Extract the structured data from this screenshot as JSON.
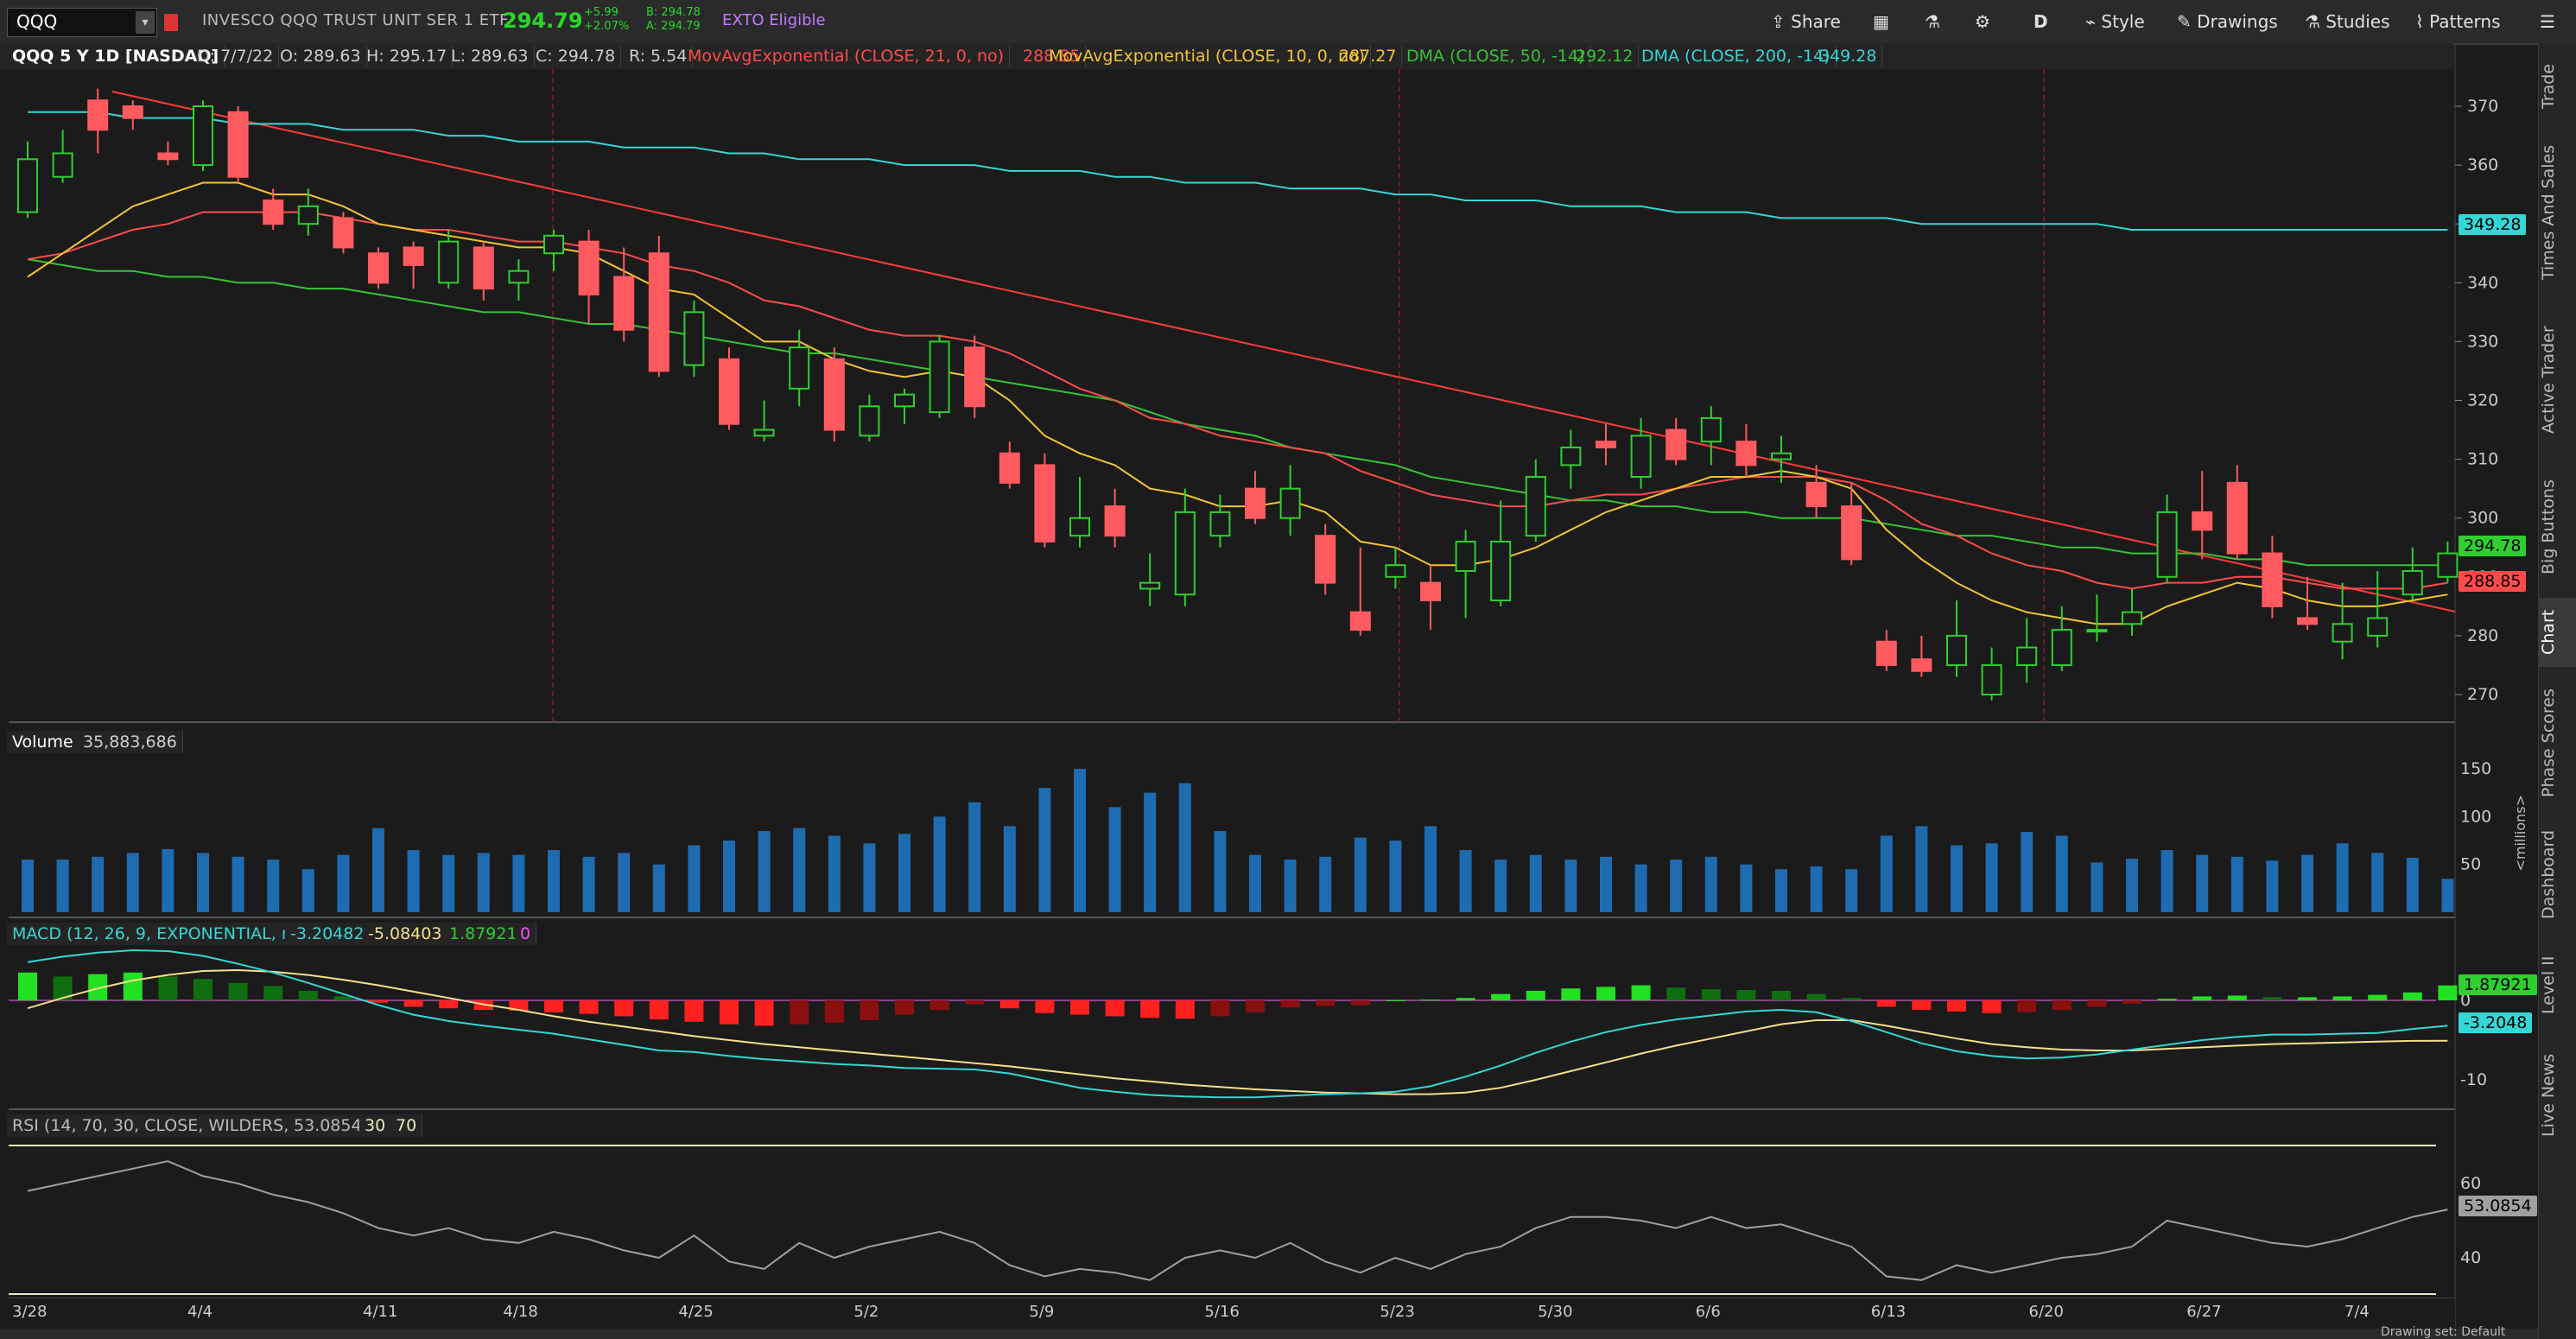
{
  "topbar": {
    "symbol": "QQQ",
    "instrument_name": "INVESCO QQQ TRUST UNIT SER 1 ETF",
    "last_price": "294.79",
    "change_abs": "+5.99",
    "change_pct": "+2.07%",
    "bid": "B: 294.78",
    "ask": "A: 294.79",
    "exto": "EXTO Eligible",
    "buttons": {
      "share": "Share",
      "period": "D",
      "style": "Style",
      "drawings": "Drawings",
      "studies": "Studies",
      "patterns": "Patterns"
    }
  },
  "chart_info": {
    "title": "QQQ 5 Y 1D [NASDAQ]",
    "date": "D: 7/7/22",
    "open": "O: 289.63",
    "high": "H: 295.17",
    "low": "L: 289.63",
    "close": "C: 294.78",
    "range": "R: 5.54",
    "ema21_label": "MovAvgExponential (CLOSE, 21, 0, no)",
    "ema21_value": "288.85",
    "ema10_label": "MovAvgExponential (CLOSE, 10, 0, no)",
    "ema10_value": "287.27",
    "dma50_label": "DMA (CLOSE, 50, -14)",
    "dma50_value": "292.12",
    "dma200_label": "DMA (CLOSE, 200, -14)",
    "dma200_value": "349.28"
  },
  "colors": {
    "up": "#2fcf2f",
    "down": "#ff5a5f",
    "ema21": "#ff4b4b",
    "ema10": "#f2c431",
    "dma50": "#35c435",
    "dma200": "#35d6d6",
    "macd": "#35d6d6",
    "signal": "#f5df8c",
    "volume": "#1f6bb0",
    "rsi": "#a0a0a0"
  },
  "price_axis": {
    "ticks": [
      "370",
      "360",
      "350",
      "340",
      "330",
      "320",
      "310",
      "300",
      "290",
      "280",
      "270"
    ],
    "tags": {
      "dma200": "349.28",
      "last": "294.78",
      "ema21": "288.85"
    }
  },
  "volume_pane": {
    "title": "Volume",
    "value": "35,883,686",
    "ticks": [
      "150",
      "100",
      "50"
    ],
    "unit": "<millions>"
  },
  "macd_pane": {
    "title": "MACD (12, 26, 9, EXPONENTIAL, no)",
    "macd_value": "-3.20482",
    "signal_value": "-5.08403",
    "diff_value": "1.87921",
    "zero_value": "0",
    "ticks": [
      "0",
      "-10"
    ],
    "tags": {
      "diff": "1.87921",
      "macd": "-3.2048"
    }
  },
  "rsi_pane": {
    "title": "RSI (14, 70, 30, CLOSE, WILDERS, no)",
    "value": "53.0854",
    "oversold": "30",
    "overbought": "70",
    "ticks": [
      "60",
      "40"
    ],
    "tag": "53.0854"
  },
  "x_axis": {
    "labels": [
      "3/28",
      "4/4",
      "4/11",
      "4/18",
      "4/25",
      "5/2",
      "5/9",
      "5/16",
      "5/23",
      "5/30",
      "6/6",
      "6/13",
      "6/20",
      "6/27",
      "7/4"
    ]
  },
  "side_tabs": [
    "Trade",
    "Times And Sales",
    "Active Trader",
    "Big Buttons",
    "Chart",
    "Phase Scores",
    "Dashboard",
    "Level II",
    "Live News"
  ],
  "status": {
    "drawing_set": "Drawing set: Default"
  },
  "chart_data": {
    "type": "candlestick",
    "dates": [
      "3/28",
      "3/29",
      "3/30",
      "3/31",
      "4/1",
      "4/4",
      "4/5",
      "4/6",
      "4/7",
      "4/8",
      "4/11",
      "4/12",
      "4/13",
      "4/14",
      "4/18",
      "4/19",
      "4/20",
      "4/21",
      "4/22",
      "4/25",
      "4/26",
      "4/27",
      "4/28",
      "4/29",
      "5/2",
      "5/3",
      "5/4",
      "5/5",
      "5/6",
      "5/9",
      "5/10",
      "5/11",
      "5/12",
      "5/13",
      "5/16",
      "5/17",
      "5/18",
      "5/19",
      "5/20",
      "5/23",
      "5/24",
      "5/25",
      "5/26",
      "5/27",
      "5/31",
      "6/1",
      "6/2",
      "6/3",
      "6/6",
      "6/7",
      "6/8",
      "6/9",
      "6/10",
      "6/13",
      "6/14",
      "6/15",
      "6/16",
      "6/17",
      "6/21",
      "6/22",
      "6/23",
      "6/24",
      "6/27",
      "6/28",
      "6/29",
      "6/30",
      "7/1",
      "7/5",
      "7/6",
      "7/7"
    ],
    "open": [
      352,
      358,
      371,
      370,
      362,
      360,
      369,
      354,
      350,
      351,
      345,
      346,
      340,
      346,
      340,
      345,
      347,
      341,
      345,
      326,
      327,
      314,
      322,
      327,
      314,
      319,
      318,
      329,
      311,
      309,
      297,
      302,
      288,
      287,
      297,
      305,
      300,
      297,
      284,
      290,
      289,
      291,
      286,
      297,
      309,
      313,
      307,
      315,
      313,
      313,
      310,
      306,
      302,
      279,
      276,
      275,
      270,
      275,
      275,
      281,
      282,
      290,
      301,
      306,
      294,
      283,
      279,
      280,
      287,
      290
    ],
    "close": [
      361,
      362,
      366,
      368,
      361,
      370,
      358,
      350,
      353,
      346,
      340,
      343,
      347,
      339,
      342,
      348,
      338,
      332,
      325,
      335,
      316,
      315,
      329,
      315,
      319,
      321,
      330,
      319,
      306,
      296,
      300,
      297,
      289,
      301,
      301,
      300,
      305,
      289,
      281,
      292,
      286,
      296,
      296,
      307,
      312,
      312,
      314,
      310,
      317,
      309,
      311,
      302,
      293,
      275,
      274,
      280,
      275,
      278,
      281,
      281,
      284,
      301,
      298,
      294,
      285,
      282,
      282,
      283,
      291,
      294
    ],
    "high": [
      364,
      366,
      373,
      371,
      364,
      371,
      370,
      356,
      356,
      352,
      346,
      347,
      349,
      347,
      344,
      349,
      349,
      346,
      348,
      337,
      329,
      320,
      332,
      329,
      321,
      322,
      331,
      331,
      313,
      311,
      307,
      305,
      294,
      305,
      304,
      308,
      309,
      299,
      295,
      295,
      292,
      298,
      303,
      310,
      315,
      316,
      317,
      317,
      319,
      316,
      314,
      309,
      306,
      281,
      280,
      286,
      278,
      283,
      285,
      287,
      288,
      304,
      308,
      309,
      297,
      290,
      289,
      291,
      295,
      296
    ],
    "low": [
      351,
      357,
      362,
      366,
      360,
      359,
      357,
      349,
      348,
      345,
      339,
      339,
      339,
      337,
      337,
      342,
      333,
      330,
      324,
      324,
      315,
      313,
      319,
      313,
      313,
      316,
      317,
      317,
      305,
      295,
      295,
      295,
      285,
      285,
      295,
      299,
      297,
      287,
      280,
      288,
      281,
      283,
      285,
      296,
      305,
      309,
      305,
      309,
      309,
      307,
      306,
      300,
      292,
      274,
      273,
      273,
      269,
      272,
      274,
      279,
      280,
      289,
      293,
      293,
      283,
      281,
      276,
      278,
      286,
      289
    ],
    "ema10": [
      341,
      345,
      349,
      353,
      355,
      357,
      357,
      355,
      355,
      353,
      350,
      349,
      348,
      347,
      346,
      346,
      345,
      342,
      339,
      338,
      334,
      330,
      330,
      327,
      325,
      324,
      325,
      324,
      320,
      314,
      311,
      309,
      305,
      304,
      302,
      302,
      303,
      301,
      296,
      295,
      292,
      292,
      293,
      295,
      298,
      301,
      303,
      305,
      307,
      307,
      308,
      307,
      305,
      298,
      293,
      289,
      286,
      284,
      283,
      282,
      282,
      285,
      287,
      289,
      288,
      286,
      285,
      285,
      286,
      287
    ],
    "ema21": [
      344,
      345,
      347,
      349,
      350,
      352,
      352,
      352,
      352,
      351,
      350,
      349,
      349,
      348,
      347,
      347,
      346,
      345,
      343,
      342,
      340,
      337,
      336,
      334,
      332,
      331,
      331,
      330,
      328,
      325,
      322,
      320,
      317,
      316,
      314,
      313,
      312,
      311,
      308,
      306,
      304,
      303,
      302,
      302,
      303,
      304,
      304,
      305,
      306,
      307,
      307,
      307,
      306,
      303,
      299,
      297,
      294,
      292,
      291,
      289,
      288,
      289,
      289,
      290,
      290,
      289,
      288,
      288,
      288,
      289
    ],
    "dma50": [
      344,
      343,
      342,
      342,
      341,
      341,
      340,
      340,
      339,
      339,
      338,
      337,
      336,
      335,
      335,
      334,
      333,
      333,
      332,
      331,
      330,
      329,
      328,
      328,
      327,
      326,
      325,
      324,
      323,
      322,
      321,
      320,
      318,
      316,
      315,
      314,
      312,
      311,
      310,
      309,
      307,
      306,
      305,
      304,
      303,
      303,
      302,
      302,
      301,
      301,
      300,
      300,
      300,
      299,
      298,
      297,
      297,
      296,
      295,
      295,
      294,
      294,
      294,
      293,
      293,
      292,
      292,
      292,
      292,
      292
    ],
    "dma200": [
      369,
      369,
      369,
      368,
      368,
      368,
      367,
      367,
      367,
      366,
      366,
      366,
      365,
      365,
      364,
      364,
      364,
      363,
      363,
      363,
      362,
      362,
      361,
      361,
      361,
      360,
      360,
      360,
      359,
      359,
      359,
      358,
      358,
      357,
      357,
      357,
      356,
      356,
      356,
      355,
      355,
      354,
      354,
      354,
      353,
      353,
      353,
      352,
      352,
      352,
      351,
      351,
      351,
      351,
      350,
      350,
      350,
      350,
      350,
      350,
      349,
      349,
      349,
      349,
      349,
      349,
      349,
      349,
      349,
      349
    ],
    "volume_millions": [
      55,
      55,
      58,
      62,
      66,
      62,
      58,
      55,
      45,
      60,
      88,
      65,
      60,
      62,
      60,
      65,
      58,
      62,
      50,
      70,
      75,
      85,
      88,
      80,
      72,
      82,
      100,
      115,
      90,
      130,
      150,
      110,
      125,
      135,
      85,
      60,
      55,
      58,
      78,
      75,
      90,
      65,
      55,
      60,
      55,
      58,
      50,
      55,
      58,
      50,
      45,
      48,
      45,
      80,
      90,
      70,
      72,
      84,
      80,
      52,
      56,
      65,
      60,
      58,
      54,
      60,
      72,
      62,
      57,
      35
    ],
    "macd_hist": [
      3.5,
      3.0,
      3.3,
      3.5,
      3.0,
      2.7,
      2.2,
      1.8,
      1.2,
      0.5,
      -0.3,
      -0.8,
      -1.0,
      -1.2,
      -1.3,
      -1.5,
      -1.7,
      -2.0,
      -2.4,
      -2.7,
      -3.0,
      -3.2,
      -3.0,
      -2.8,
      -2.5,
      -1.8,
      -1.2,
      -0.5,
      -1.0,
      -1.6,
      -1.8,
      -2.0,
      -2.2,
      -2.3,
      -2.0,
      -1.5,
      -0.9,
      -0.7,
      -0.6,
      0.0,
      0.1,
      0.3,
      0.8,
      1.2,
      1.5,
      1.7,
      1.9,
      1.6,
      1.4,
      1.3,
      1.2,
      0.8,
      0.3,
      -0.8,
      -1.2,
      -1.4,
      -1.6,
      -1.5,
      -1.2,
      -0.8,
      -0.4,
      0.2,
      0.5,
      0.6,
      0.4,
      0.4,
      0.5,
      0.7,
      1.0,
      1.88
    ],
    "macd_line": [
      4.8,
      5.5,
      6.0,
      6.3,
      6.2,
      5.6,
      4.6,
      3.5,
      2.2,
      0.8,
      -0.6,
      -1.8,
      -2.6,
      -3.2,
      -3.7,
      -4.2,
      -4.9,
      -5.6,
      -6.3,
      -6.5,
      -7.0,
      -7.4,
      -7.7,
      -8.0,
      -8.2,
      -8.5,
      -8.6,
      -8.7,
      -9.2,
      -10.1,
      -11.0,
      -11.5,
      -11.9,
      -12.1,
      -12.2,
      -12.2,
      -12.0,
      -11.8,
      -11.7,
      -11.5,
      -10.8,
      -9.6,
      -8.2,
      -6.6,
      -5.2,
      -4.0,
      -3.1,
      -2.4,
      -1.9,
      -1.4,
      -1.2,
      -1.5,
      -2.6,
      -4.0,
      -5.4,
      -6.4,
      -7.0,
      -7.3,
      -7.2,
      -6.8,
      -6.2,
      -5.6,
      -5.0,
      -4.6,
      -4.3,
      -4.3,
      -4.2,
      -4.1,
      -3.6,
      -3.2
    ],
    "macd_signal": [
      -1.0,
      0.3,
      1.5,
      2.5,
      3.2,
      3.7,
      3.8,
      3.6,
      3.2,
      2.6,
      1.9,
      1.1,
      0.3,
      -0.5,
      -1.2,
      -2.0,
      -2.7,
      -3.3,
      -3.9,
      -4.5,
      -5.0,
      -5.5,
      -5.9,
      -6.3,
      -6.7,
      -7.1,
      -7.5,
      -7.9,
      -8.3,
      -8.8,
      -9.3,
      -9.8,
      -10.2,
      -10.6,
      -10.9,
      -11.2,
      -11.4,
      -11.6,
      -11.7,
      -11.8,
      -11.8,
      -11.6,
      -11.0,
      -10.0,
      -8.9,
      -7.8,
      -6.7,
      -5.7,
      -4.8,
      -3.9,
      -3.0,
      -2.5,
      -2.5,
      -3.2,
      -4.0,
      -4.8,
      -5.5,
      -5.9,
      -6.2,
      -6.3,
      -6.3,
      -6.1,
      -5.9,
      -5.7,
      -5.5,
      -5.4,
      -5.3,
      -5.2,
      -5.1,
      -5.08
    ],
    "rsi": [
      58,
      60,
      62,
      64,
      66,
      62,
      60,
      57,
      55,
      52,
      48,
      46,
      48,
      45,
      44,
      47,
      45,
      42,
      40,
      46,
      39,
      37,
      44,
      40,
      43,
      45,
      47,
      44,
      38,
      35,
      37,
      36,
      34,
      40,
      42,
      40,
      44,
      39,
      36,
      40,
      37,
      41,
      43,
      48,
      51,
      51,
      50,
      48,
      51,
      48,
      49,
      46,
      43,
      35,
      34,
      38,
      36,
      38,
      40,
      41,
      43,
      50,
      48,
      46,
      44,
      43,
      45,
      48,
      51,
      53
    ]
  }
}
